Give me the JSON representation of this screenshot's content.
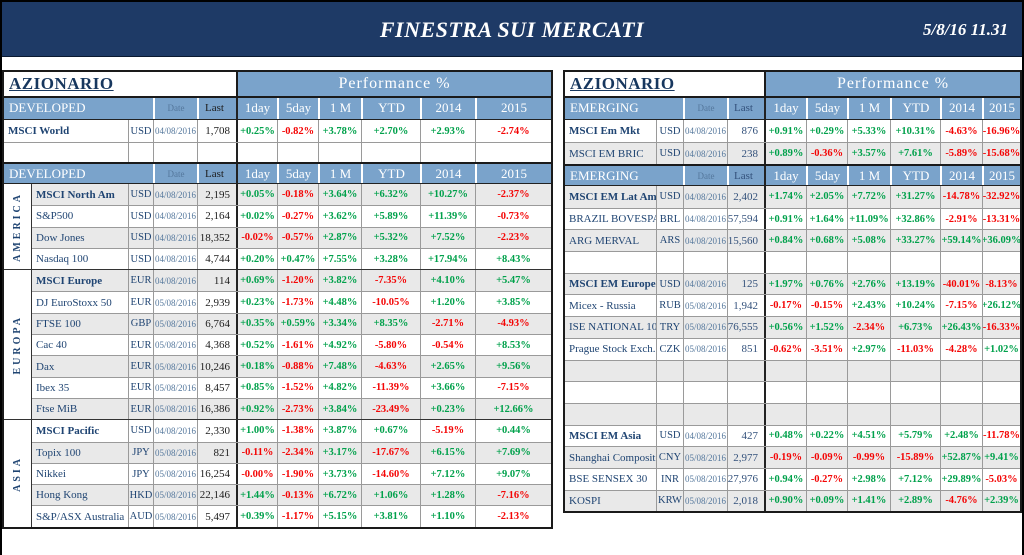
{
  "titlebar": {
    "title": "FINESTRA SUI MERCATI",
    "datetime": "5/8/16 11.31"
  },
  "perf_header": "Performance %",
  "columns": {
    "date": "Date",
    "last": "Last",
    "perf": [
      "1day",
      "5day",
      "1 M",
      "YTD",
      "2014",
      "2015"
    ]
  },
  "colors": {
    "navy": "#1E3A66",
    "header_blue": "#7AA3CB",
    "positive_green": "#00A14B",
    "negative_red": "#F40505",
    "row_alt_gray": "#E9E9E9",
    "index_name_blue": "#1F4472"
  },
  "left_table": {
    "title": "AZIONARIO",
    "top_block": {
      "header": "DEVELOPED",
      "rows": [
        {
          "name": "MSCI World",
          "bold": true,
          "ccy": "USD",
          "date": "04/08/2016",
          "last": "1,708",
          "perf": [
            "+0.25%",
            "-0.82%",
            "+3.78%",
            "+2.70%",
            "+2.93%",
            "-2.74%"
          ]
        },
        {
          "empty": true
        }
      ]
    },
    "main_block": {
      "header": "DEVELOPED",
      "sections": [
        {
          "region": "AMERICA",
          "rows": [
            {
              "name": "MSCI North Am",
              "bold": true,
              "ccy": "USD",
              "date": "04/08/2016",
              "last": "2,195",
              "perf": [
                "+0.05%",
                "-0.18%",
                "+3.64%",
                "+6.32%",
                "+10.27%",
                "-2.37%"
              ]
            },
            {
              "name": "S&P500",
              "ccy": "USD",
              "date": "04/08/2016",
              "last": "2,164",
              "perf": [
                "+0.02%",
                "-0.27%",
                "+3.62%",
                "+5.89%",
                "+11.39%",
                "-0.73%"
              ]
            },
            {
              "name": "Dow Jones",
              "ccy": "USD",
              "date": "04/08/2016",
              "last": "18,352",
              "perf": [
                "-0.02%",
                "-0.57%",
                "+2.87%",
                "+5.32%",
                "+7.52%",
                "-2.23%"
              ]
            },
            {
              "name": "Nasdaq 100",
              "ccy": "USD",
              "date": "04/08/2016",
              "last": "4,744",
              "perf": [
                "+0.20%",
                "+0.47%",
                "+7.55%",
                "+3.28%",
                "+17.94%",
                "+8.43%"
              ]
            }
          ]
        },
        {
          "region": "EUROPA",
          "rows": [
            {
              "name": "MSCI Europe",
              "bold": true,
              "ccy": "EUR",
              "date": "04/08/2016",
              "last": "114",
              "perf": [
                "+0.69%",
                "-1.20%",
                "+3.82%",
                "-7.35%",
                "+4.10%",
                "+5.47%"
              ]
            },
            {
              "name": "DJ EuroStoxx 50",
              "ccy": "EUR",
              "date": "05/08/2016",
              "last": "2,939",
              "perf": [
                "+0.23%",
                "-1.73%",
                "+4.48%",
                "-10.05%",
                "+1.20%",
                "+3.85%"
              ]
            },
            {
              "name": "FTSE 100",
              "ccy": "GBP",
              "date": "05/08/2016",
              "last": "6,764",
              "perf": [
                "+0.35%",
                "+0.59%",
                "+3.34%",
                "+8.35%",
                "-2.71%",
                "-4.93%"
              ]
            },
            {
              "name": "Cac 40",
              "ccy": "EUR",
              "date": "05/08/2016",
              "last": "4,368",
              "perf": [
                "+0.52%",
                "-1.61%",
                "+4.92%",
                "-5.80%",
                "-0.54%",
                "+8.53%"
              ]
            },
            {
              "name": "Dax",
              "ccy": "EUR",
              "date": "05/08/2016",
              "last": "10,246",
              "perf": [
                "+0.18%",
                "-0.88%",
                "+7.48%",
                "-4.63%",
                "+2.65%",
                "+9.56%"
              ]
            },
            {
              "name": "Ibex 35",
              "ccy": "EUR",
              "date": "05/08/2016",
              "last": "8,457",
              "perf": [
                "+0.85%",
                "-1.52%",
                "+4.82%",
                "-11.39%",
                "+3.66%",
                "-7.15%"
              ]
            },
            {
              "name": "Ftse MiB",
              "ccy": "EUR",
              "date": "05/08/2016",
              "last": "16,386",
              "perf": [
                "+0.92%",
                "-2.73%",
                "+3.84%",
                "-23.49%",
                "+0.23%",
                "+12.66%"
              ]
            }
          ]
        },
        {
          "region": "ASIA",
          "rows": [
            {
              "name": "MSCI Pacific",
              "bold": true,
              "ccy": "USD",
              "date": "04/08/2016",
              "last": "2,330",
              "perf": [
                "+1.00%",
                "-1.38%",
                "+3.87%",
                "+0.67%",
                "-5.19%",
                "+0.44%"
              ]
            },
            {
              "name": "Topix 100",
              "ccy": "JPY",
              "date": "05/08/2016",
              "last": "821",
              "perf": [
                "-0.11%",
                "-2.34%",
                "+3.17%",
                "-17.67%",
                "+6.15%",
                "+7.69%"
              ]
            },
            {
              "name": "Nikkei",
              "ccy": "JPY",
              "date": "05/08/2016",
              "last": "16,254",
              "perf": [
                "-0.00%",
                "-1.90%",
                "+3.73%",
                "-14.60%",
                "+7.12%",
                "+9.07%"
              ]
            },
            {
              "name": "Hong Kong",
              "ccy": "HKD",
              "date": "05/08/2016",
              "last": "22,146",
              "perf": [
                "+1.44%",
                "-0.13%",
                "+6.72%",
                "+1.06%",
                "+1.28%",
                "-7.16%"
              ]
            },
            {
              "name": "S&P/ASX Australia",
              "ccy": "AUD",
              "date": "05/08/2016",
              "last": "5,497",
              "perf": [
                "+0.39%",
                "-1.17%",
                "+5.15%",
                "+3.81%",
                "+1.10%",
                "-2.13%"
              ]
            }
          ]
        }
      ]
    }
  },
  "right_table": {
    "title": "AZIONARIO",
    "top_block": {
      "header": "EMERGING",
      "rows": [
        {
          "name": "MSCI Em Mkt",
          "bold": true,
          "ccy": "USD",
          "date": "04/08/2016",
          "last": "876",
          "perf": [
            "+0.91%",
            "+0.29%",
            "+5.33%",
            "+10.31%",
            "-4.63%",
            "-16.96%"
          ]
        },
        {
          "name": "MSCI EM BRIC",
          "ccy": "USD",
          "date": "04/08/2016",
          "last": "238",
          "perf": [
            "+0.89%",
            "-0.36%",
            "+3.57%",
            "+7.61%",
            "-5.89%",
            "-15.68%"
          ]
        }
      ]
    },
    "main_block": {
      "header": "EMERGING",
      "rows": [
        {
          "name": "MSCI EM Lat Am",
          "bold": true,
          "ccy": "USD",
          "date": "04/08/2016",
          "last": "2,402",
          "perf": [
            "+1.74%",
            "+2.05%",
            "+7.72%",
            "+31.27%",
            "-14.78%",
            "-32.92%"
          ]
        },
        {
          "name": "BRAZIL BOVESPA",
          "ccy": "BRL",
          "date": "04/08/2016",
          "last": "57,594",
          "perf": [
            "+0.91%",
            "+1.64%",
            "+11.09%",
            "+32.86%",
            "-2.91%",
            "-13.31%"
          ]
        },
        {
          "name": "ARG MERVAL",
          "ccy": "ARS",
          "date": "04/08/2016",
          "last": "15,560",
          "perf": [
            "+0.84%",
            "+0.68%",
            "+5.08%",
            "+33.27%",
            "+59.14%",
            "+36.09%"
          ]
        },
        {
          "empty": true
        },
        {
          "name": "MSCI EM Europe",
          "bold": true,
          "ccy": "USD",
          "date": "04/08/2016",
          "last": "125",
          "perf": [
            "+1.97%",
            "+0.76%",
            "+2.76%",
            "+13.19%",
            "-40.01%",
            "-8.13%"
          ]
        },
        {
          "name": "Micex - Russia",
          "ccy": "RUB",
          "date": "05/08/2016",
          "last": "1,942",
          "perf": [
            "-0.17%",
            "-0.15%",
            "+2.43%",
            "+10.24%",
            "-7.15%",
            "+26.12%"
          ]
        },
        {
          "name": "ISE NATIONAL 100",
          "ccy": "TRY",
          "date": "05/08/2016",
          "last": "76,555",
          "perf": [
            "+0.56%",
            "+1.52%",
            "-2.34%",
            "+6.73%",
            "+26.43%",
            "-16.33%"
          ]
        },
        {
          "name": "Prague Stock Exch.",
          "ccy": "CZK",
          "date": "05/08/2016",
          "last": "851",
          "perf": [
            "-0.62%",
            "-3.51%",
            "+2.97%",
            "-11.03%",
            "-4.28%",
            "+1.02%"
          ]
        },
        {
          "empty": true
        },
        {
          "empty": true
        },
        {
          "empty": true
        },
        {
          "name": "MSCI EM Asia",
          "bold": true,
          "ccy": "USD",
          "date": "04/08/2016",
          "last": "427",
          "perf": [
            "+0.48%",
            "+0.22%",
            "+4.51%",
            "+5.79%",
            "+2.48%",
            "-11.78%"
          ]
        },
        {
          "name": "Shanghai Composite",
          "ccy": "CNY",
          "date": "05/08/2016",
          "last": "2,977",
          "perf": [
            "-0.19%",
            "-0.09%",
            "-0.99%",
            "-15.89%",
            "+52.87%",
            "+9.41%"
          ]
        },
        {
          "name": "BSE SENSEX 30",
          "ccy": "INR",
          "date": "05/08/2016",
          "last": "27,976",
          "perf": [
            "+0.94%",
            "-0.27%",
            "+2.98%",
            "+7.12%",
            "+29.89%",
            "-5.03%"
          ]
        },
        {
          "name": "KOSPI",
          "ccy": "KRW",
          "date": "05/08/2016",
          "last": "2,018",
          "perf": [
            "+0.90%",
            "+0.09%",
            "+1.41%",
            "+2.89%",
            "-4.76%",
            "+2.39%"
          ]
        }
      ]
    }
  }
}
